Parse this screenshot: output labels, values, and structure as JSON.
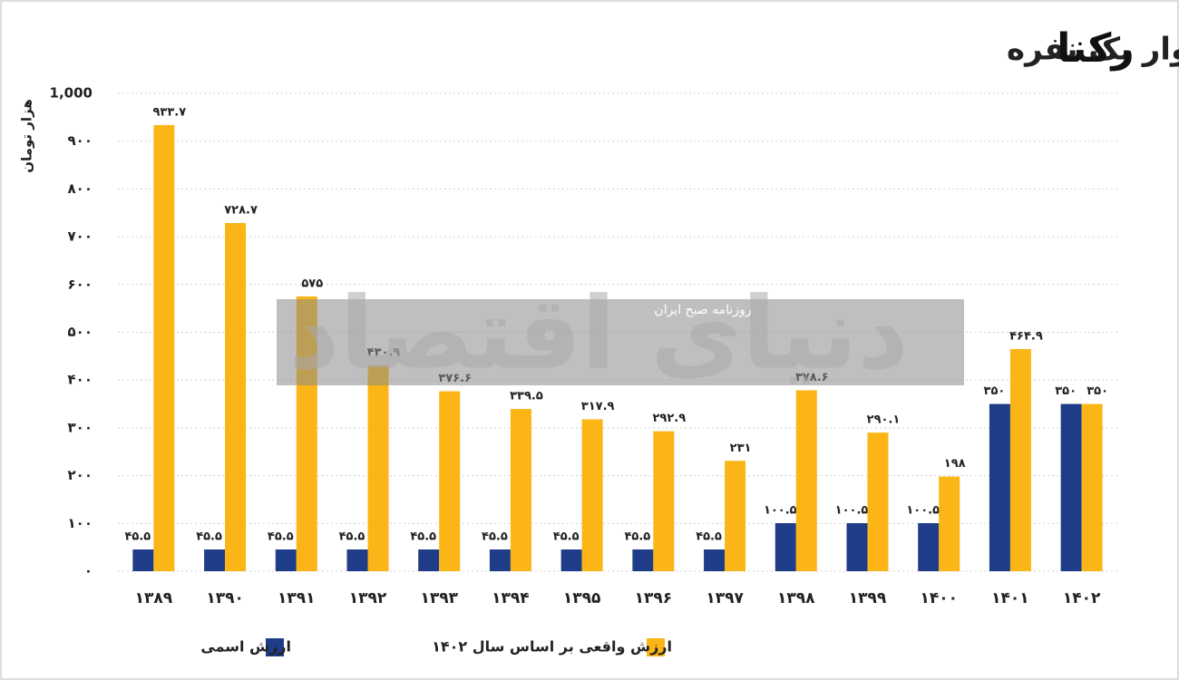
{
  "chart_data": {
    "type": "bar",
    "title": "تغییرات ارزش واقعی یارانه نقدی برای خانوار یک نفره",
    "logo": "رکنا",
    "y_label": "هزار تومان",
    "annotations": [
      "دنیای اقتصاد",
      "روزنامه صبح ایران"
    ],
    "categories": [
      "۱۳۸۹",
      "۱۳۹۰",
      "۱۳۹۱",
      "۱۳۹۲",
      "۱۳۹۳",
      "۱۳۹۴",
      "۱۳۹۵",
      "۱۳۹۶",
      "۱۳۹۷",
      "۱۳۹۸",
      "۱۳۹۹",
      "۱۴۰۰",
      "۱۴۰۱",
      "۱۴۰۲"
    ],
    "series": [
      {
        "name": "ارزش اسمی",
        "color": "#1f3c88",
        "values": [
          45.5,
          45.5,
          45.5,
          45.5,
          45.5,
          45.5,
          45.5,
          45.5,
          45.5,
          100.5,
          100.5,
          100.5,
          350,
          350
        ],
        "value_labels": [
          "۴۵.۵",
          "۴۵.۵",
          "۴۵.۵",
          "۴۵.۵",
          "۴۵.۵",
          "۴۵.۵",
          "۴۵.۵",
          "۴۵.۵",
          "۴۵.۵",
          "۱۰۰.۵",
          "۱۰۰.۵",
          "۱۰۰.۵",
          "۳۵۰",
          "۳۵۰"
        ]
      },
      {
        "name": "ارزش واقعی بر اساس سال ۱۴۰۲",
        "color": "#fbb516",
        "values": [
          933.7,
          728.7,
          575,
          430.9,
          376.6,
          339.5,
          317.9,
          292.9,
          231,
          378.6,
          290.1,
          198,
          464.9,
          350
        ],
        "value_labels": [
          "۹۳۳.۷",
          "۷۲۸.۷",
          "۵۷۵",
          "۴۳۰.۹",
          "۳۷۶.۶",
          "۳۳۹.۵",
          "۳۱۷.۹",
          "۲۹۲.۹",
          "۲۳۱",
          "۳۷۸.۶",
          "۲۹۰.۱",
          "۱۹۸",
          "۴۶۴.۹",
          "۳۵۰"
        ]
      }
    ],
    "ylim": [
      0,
      1000
    ],
    "yticks": [
      {
        "value": 0,
        "label": "۰"
      },
      {
        "value": 100,
        "label": "۱۰۰"
      },
      {
        "value": 200,
        "label": "۲۰۰"
      },
      {
        "value": 300,
        "label": "۳۰۰"
      },
      {
        "value": 400,
        "label": "۴۰۰"
      },
      {
        "value": 500,
        "label": "۵۰۰"
      },
      {
        "value": 600,
        "label": "۶۰۰"
      },
      {
        "value": 700,
        "label": "۷۰۰"
      },
      {
        "value": 800,
        "label": "۸۰۰"
      },
      {
        "value": 900,
        "label": "۹۰۰"
      },
      {
        "value": 1000,
        "label": "1,000"
      }
    ],
    "grid": true
  }
}
